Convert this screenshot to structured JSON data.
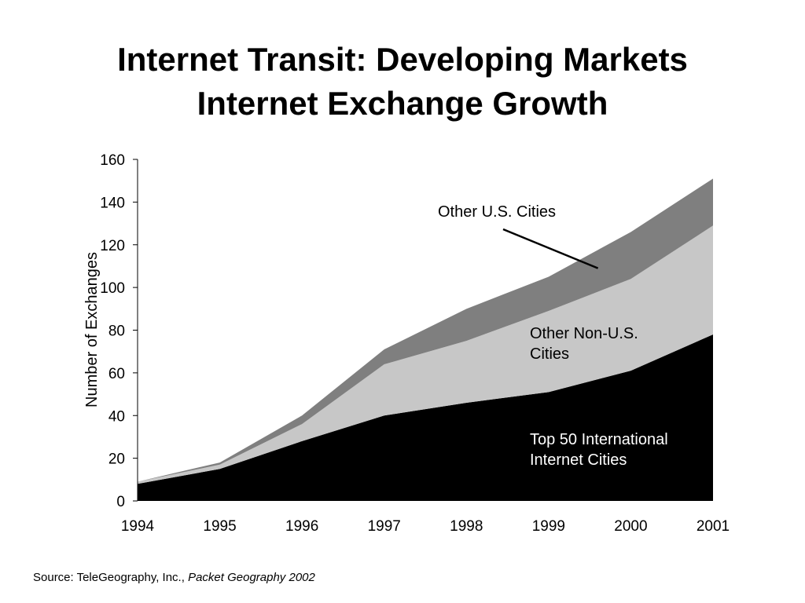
{
  "slide": {
    "title_line1": "Internet Transit: Developing Markets",
    "title_line2": "Internet Exchange Growth",
    "source_prefix": "Source: TeleGeography, Inc.,",
    "source_italic": "Packet Geography 2002"
  },
  "chart_data": {
    "type": "area",
    "stacked": true,
    "categories": [
      "1994",
      "1995",
      "1996",
      "1997",
      "1998",
      "1999",
      "2000",
      "2001"
    ],
    "ylabel": "Number of Exchanges",
    "xlabel": "",
    "ylim": [
      0,
      160
    ],
    "yticks": [
      0,
      20,
      40,
      60,
      80,
      100,
      120,
      140,
      160
    ],
    "grid": false,
    "legend": "inline labels",
    "series": [
      {
        "name": "Top 50 International Internet Cities",
        "label_lines": [
          "Top 50 International",
          "Internet Cities"
        ],
        "values": [
          8,
          15,
          28,
          40,
          46,
          51,
          61,
          78
        ],
        "color": "#000000",
        "label_color": "#ffffff"
      },
      {
        "name": "Other Non-U.S. Cities",
        "label_lines": [
          "Other Non-U.S.",
          "Cities"
        ],
        "values": [
          1,
          2,
          8,
          24,
          29,
          38,
          43,
          51
        ],
        "color": "#c7c7c7",
        "label_color": "#000000"
      },
      {
        "name": "Other U.S. Cities",
        "label_lines": [
          "Other U.S. Cities"
        ],
        "values": [
          0,
          1,
          4,
          7,
          15,
          16,
          22,
          22
        ],
        "color": "#7f7f7f",
        "label_color": "#000000"
      }
    ],
    "annotation": {
      "text": "Other U.S. Cities",
      "arrow_to": {
        "x": "1999.6",
        "y": 109
      }
    }
  }
}
